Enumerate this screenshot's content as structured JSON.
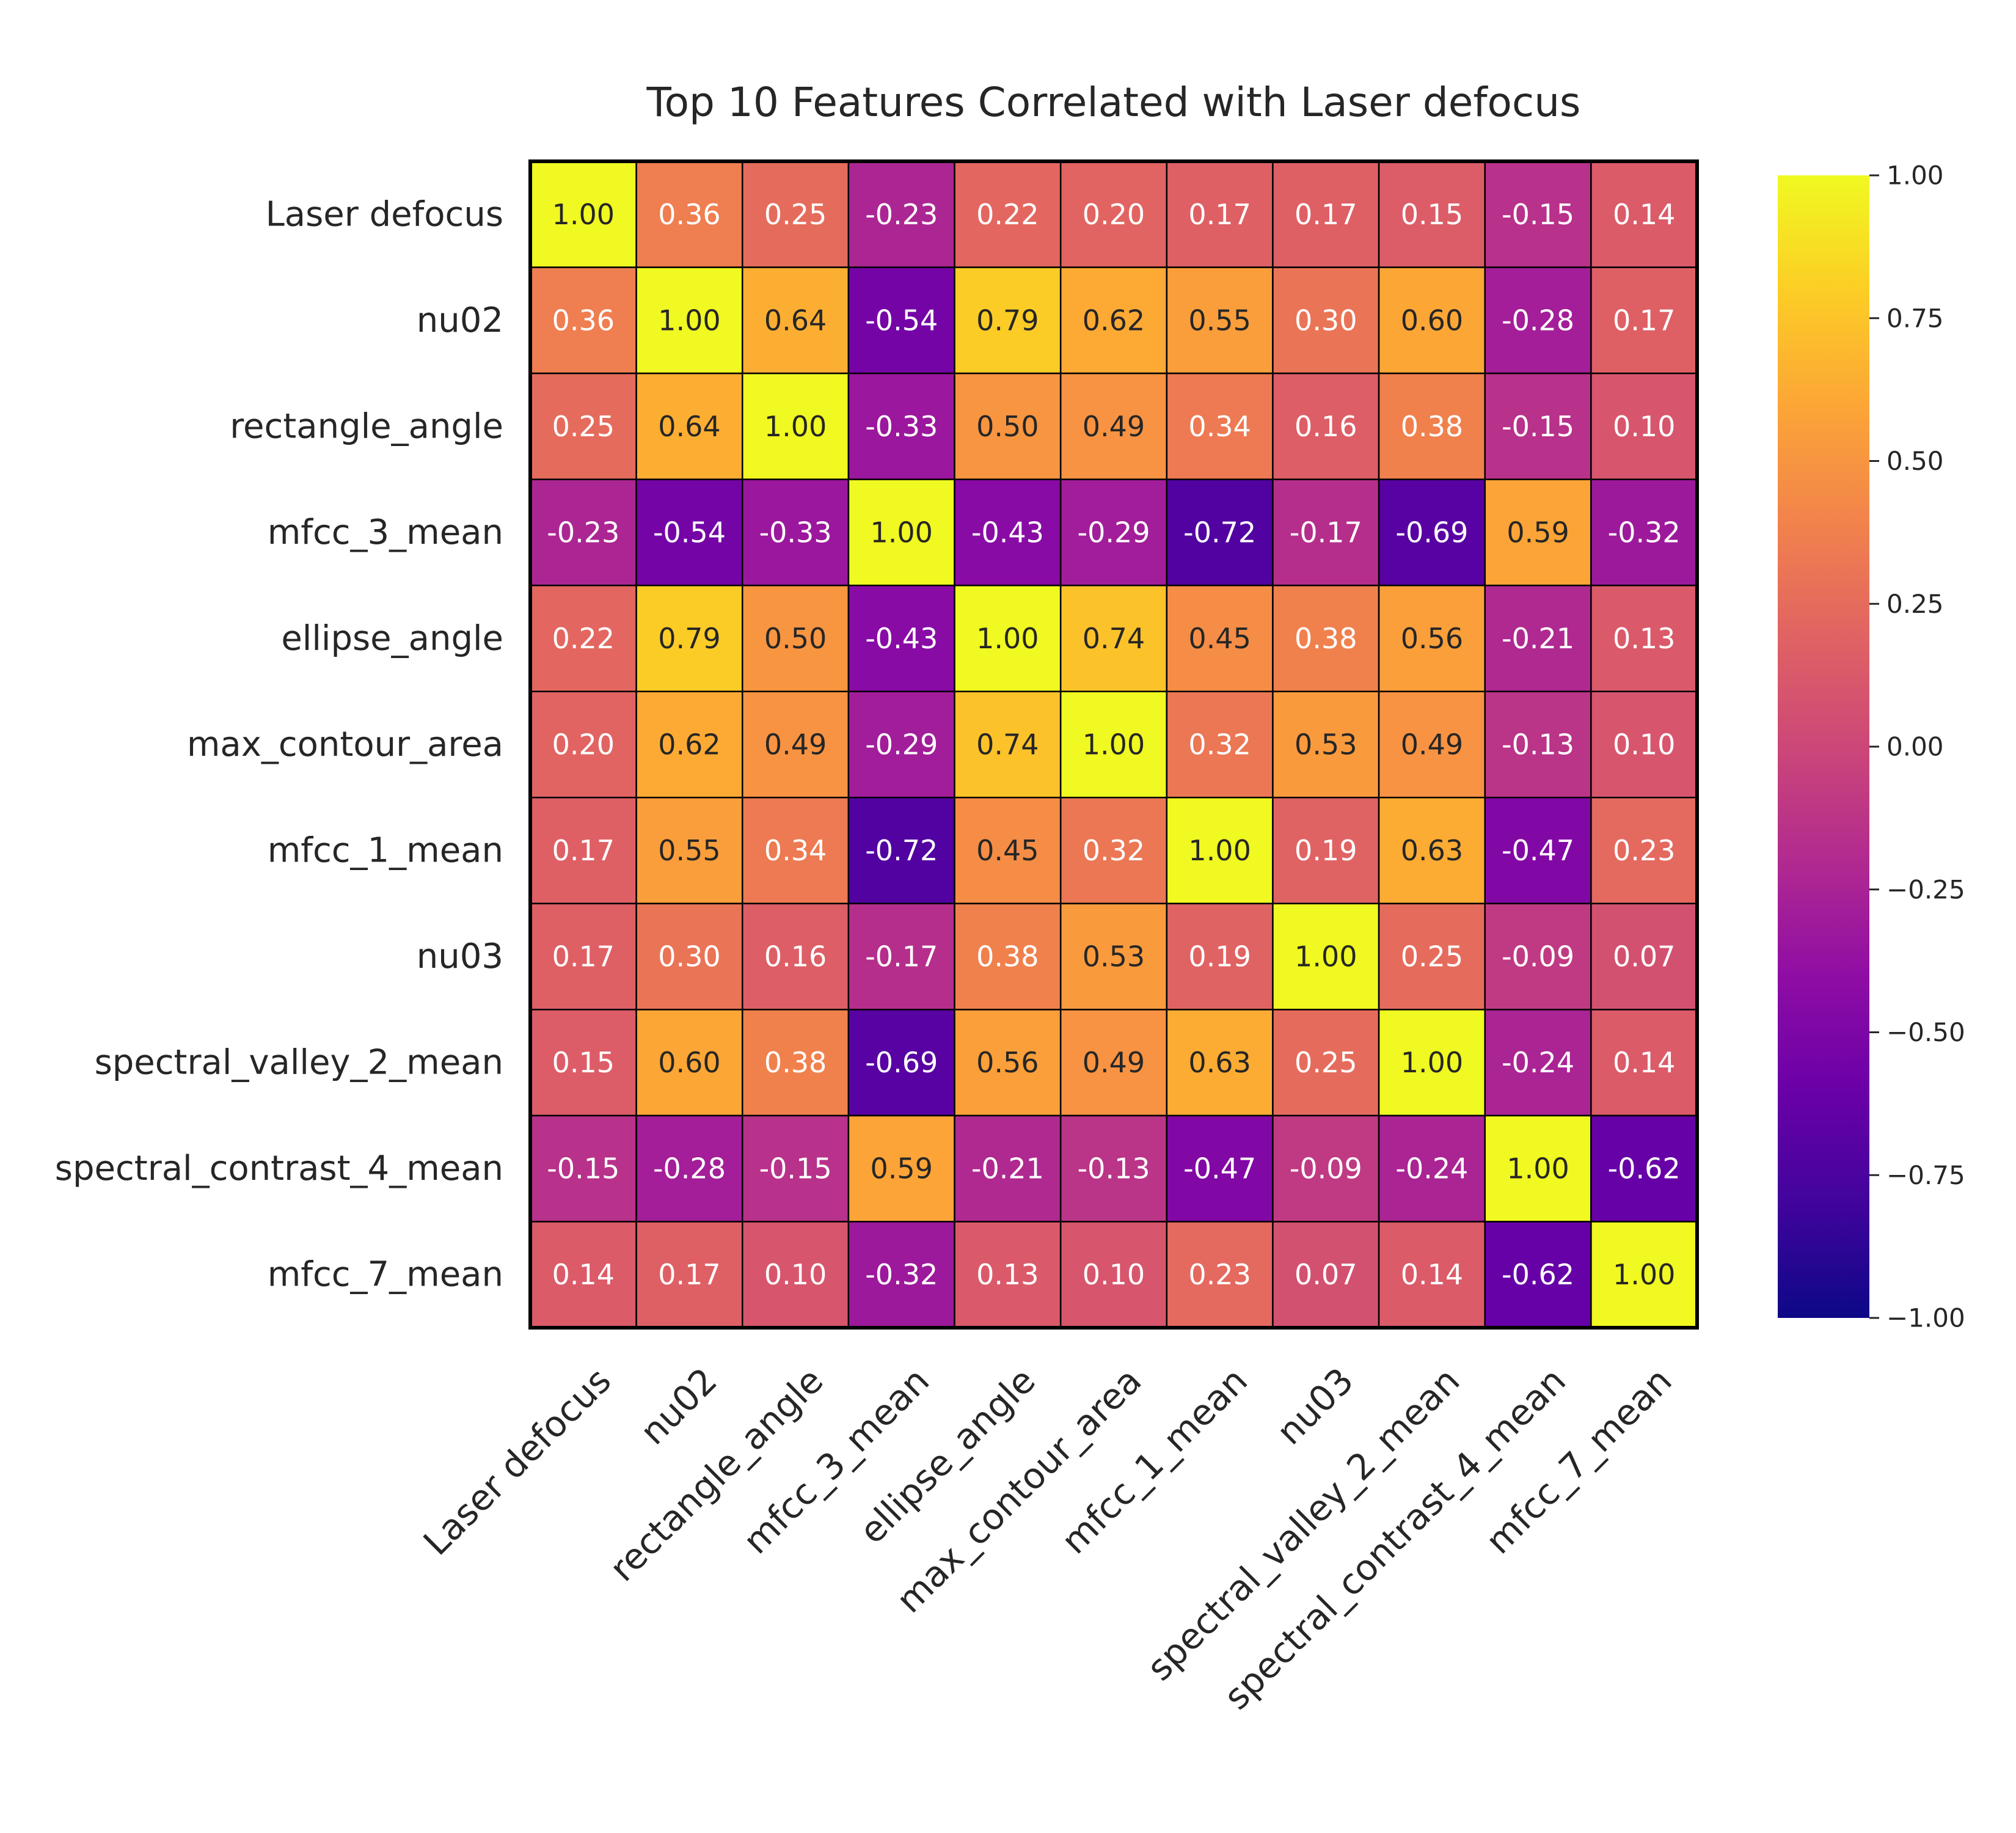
{
  "chart_data": {
    "type": "heatmap",
    "title": "Top 10 Features Correlated with Laser defocus",
    "labels": [
      "Laser defocus",
      "nu02",
      "rectangle_angle",
      "mfcc_3_mean",
      "ellipse_angle",
      "max_contour_area",
      "mfcc_1_mean",
      "nu03",
      "spectral_valley_2_mean",
      "spectral_contrast_4_mean",
      "mfcc_7_mean"
    ],
    "values": [
      [
        1.0,
        0.36,
        0.25,
        -0.23,
        0.22,
        0.2,
        0.17,
        0.17,
        0.15,
        -0.15,
        0.14
      ],
      [
        0.36,
        1.0,
        0.64,
        -0.54,
        0.79,
        0.62,
        0.55,
        0.3,
        0.6,
        -0.28,
        0.17
      ],
      [
        0.25,
        0.64,
        1.0,
        -0.33,
        0.5,
        0.49,
        0.34,
        0.16,
        0.38,
        -0.15,
        0.1
      ],
      [
        -0.23,
        -0.54,
        -0.33,
        1.0,
        -0.43,
        -0.29,
        -0.72,
        -0.17,
        -0.69,
        0.59,
        -0.32
      ],
      [
        0.22,
        0.79,
        0.5,
        -0.43,
        1.0,
        0.74,
        0.45,
        0.38,
        0.56,
        -0.21,
        0.13
      ],
      [
        0.2,
        0.62,
        0.49,
        -0.29,
        0.74,
        1.0,
        0.32,
        0.53,
        0.49,
        -0.13,
        0.1
      ],
      [
        0.17,
        0.55,
        0.34,
        -0.72,
        0.45,
        0.32,
        1.0,
        0.19,
        0.63,
        -0.47,
        0.23
      ],
      [
        0.17,
        0.3,
        0.16,
        -0.17,
        0.38,
        0.53,
        0.19,
        1.0,
        0.25,
        -0.09,
        0.07
      ],
      [
        0.15,
        0.6,
        0.38,
        -0.69,
        0.56,
        0.49,
        0.63,
        0.25,
        1.0,
        -0.24,
        0.14
      ],
      [
        -0.15,
        -0.28,
        -0.15,
        0.59,
        -0.21,
        -0.13,
        -0.47,
        -0.09,
        -0.24,
        1.0,
        -0.62
      ],
      [
        0.14,
        0.17,
        0.1,
        -0.32,
        0.13,
        0.1,
        0.23,
        0.07,
        0.14,
        -0.62,
        1.0
      ]
    ],
    "colormap": "plasma",
    "vmin": -1.0,
    "vmax": 1.0,
    "colorbar_ticks": [
      "1.00",
      "0.75",
      "0.50",
      "0.25",
      "0.00",
      "−0.25",
      "−0.50",
      "−0.75",
      "−1.00"
    ],
    "annotation_format": "2 decimals",
    "grid": true
  }
}
